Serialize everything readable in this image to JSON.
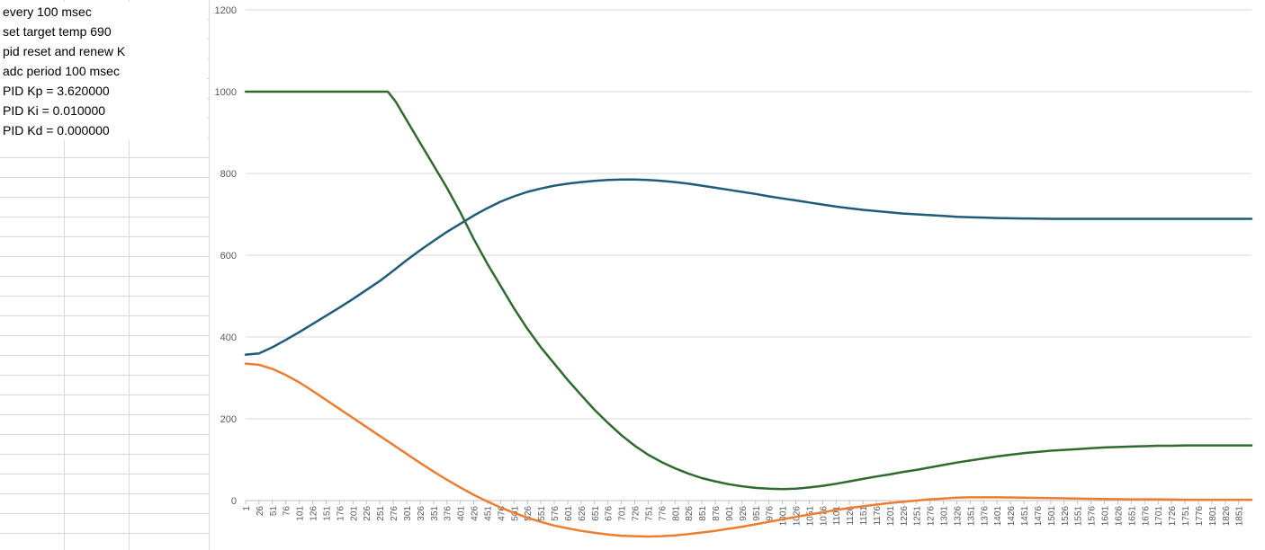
{
  "sheet": {
    "cells": [
      "every  100 msec",
      "set target temp 690",
      "pid reset and renew K",
      "adc period 100 msec",
      "PID Kp = 3.620000",
      "PID Ki = 0.010000",
      "PID Kd = 0.000000"
    ]
  },
  "chart_data": {
    "type": "line",
    "title": "",
    "xlabel": "",
    "ylabel": "",
    "ylim": [
      0,
      1200
    ],
    "yticks": [
      0,
      200,
      400,
      600,
      800,
      1000,
      1200
    ],
    "xlim": [
      1,
      1875
    ],
    "x_tick_labels": [
      "1",
      "26",
      "51",
      "76",
      "101",
      "126",
      "151",
      "176",
      "201",
      "226",
      "251",
      "276",
      "301",
      "326",
      "351",
      "376",
      "401",
      "426",
      "451",
      "476",
      "501",
      "526",
      "551",
      "576",
      "601",
      "626",
      "651",
      "676",
      "701",
      "726",
      "751",
      "776",
      "801",
      "826",
      "851",
      "876",
      "901",
      "926",
      "951",
      "976",
      "1001",
      "1026",
      "1051",
      "1076",
      "1101",
      "1126",
      "1151",
      "1176",
      "1201",
      "1226",
      "1251",
      "1276",
      "1301",
      "1326",
      "1351",
      "1376",
      "1401",
      "1426",
      "1451",
      "1476",
      "1501",
      "1526",
      "1551",
      "1576",
      "1601",
      "1626",
      "1651",
      "1676",
      "1701",
      "1726",
      "1751",
      "1776",
      "1801",
      "1826",
      "1851"
    ],
    "grid": true,
    "legend": "none",
    "series": [
      {
        "color": "#1f5c7a",
        "points": [
          [
            1,
            357
          ],
          [
            26,
            360
          ],
          [
            51,
            375
          ],
          [
            76,
            393
          ],
          [
            101,
            412
          ],
          [
            126,
            432
          ],
          [
            151,
            452
          ],
          [
            176,
            472
          ],
          [
            201,
            493
          ],
          [
            226,
            515
          ],
          [
            251,
            537
          ],
          [
            276,
            562
          ],
          [
            301,
            588
          ],
          [
            326,
            612
          ],
          [
            351,
            635
          ],
          [
            376,
            657
          ],
          [
            401,
            677
          ],
          [
            426,
            697
          ],
          [
            451,
            715
          ],
          [
            476,
            731
          ],
          [
            501,
            744
          ],
          [
            526,
            755
          ],
          [
            551,
            763
          ],
          [
            576,
            770
          ],
          [
            601,
            775
          ],
          [
            626,
            779
          ],
          [
            651,
            782
          ],
          [
            676,
            784
          ],
          [
            701,
            785
          ],
          [
            726,
            785
          ],
          [
            751,
            784
          ],
          [
            776,
            782
          ],
          [
            801,
            779
          ],
          [
            826,
            775
          ],
          [
            851,
            770
          ],
          [
            876,
            765
          ],
          [
            901,
            760
          ],
          [
            926,
            755
          ],
          [
            951,
            750
          ],
          [
            976,
            744
          ],
          [
            1001,
            739
          ],
          [
            1026,
            734
          ],
          [
            1051,
            729
          ],
          [
            1076,
            724
          ],
          [
            1101,
            719
          ],
          [
            1126,
            715
          ],
          [
            1151,
            711
          ],
          [
            1176,
            708
          ],
          [
            1201,
            705
          ],
          [
            1226,
            702
          ],
          [
            1251,
            700
          ],
          [
            1276,
            698
          ],
          [
            1301,
            696
          ],
          [
            1326,
            694
          ],
          [
            1351,
            693
          ],
          [
            1376,
            692
          ],
          [
            1401,
            691
          ],
          [
            1451,
            690
          ],
          [
            1501,
            689
          ],
          [
            1551,
            689
          ],
          [
            1601,
            689
          ],
          [
            1651,
            689
          ],
          [
            1701,
            689
          ],
          [
            1751,
            689
          ],
          [
            1801,
            689
          ],
          [
            1851,
            689
          ],
          [
            1875,
            689
          ]
        ]
      },
      {
        "color": "#ed7d31",
        "points": [
          [
            1,
            335
          ],
          [
            26,
            332
          ],
          [
            51,
            322
          ],
          [
            76,
            307
          ],
          [
            101,
            289
          ],
          [
            126,
            268
          ],
          [
            151,
            246
          ],
          [
            176,
            224
          ],
          [
            201,
            202
          ],
          [
            226,
            180
          ],
          [
            251,
            158
          ],
          [
            276,
            136
          ],
          [
            301,
            114
          ],
          [
            326,
            92
          ],
          [
            351,
            71
          ],
          [
            376,
            51
          ],
          [
            401,
            32
          ],
          [
            426,
            14
          ],
          [
            451,
            -2
          ],
          [
            476,
            -17
          ],
          [
            501,
            -30
          ],
          [
            526,
            -42
          ],
          [
            551,
            -52
          ],
          [
            576,
            -61
          ],
          [
            601,
            -68
          ],
          [
            626,
            -74
          ],
          [
            651,
            -79
          ],
          [
            676,
            -83
          ],
          [
            701,
            -86
          ],
          [
            726,
            -87
          ],
          [
            751,
            -88
          ],
          [
            776,
            -87
          ],
          [
            801,
            -85
          ],
          [
            826,
            -82
          ],
          [
            851,
            -78
          ],
          [
            876,
            -74
          ],
          [
            901,
            -69
          ],
          [
            926,
            -64
          ],
          [
            951,
            -58
          ],
          [
            976,
            -52
          ],
          [
            1001,
            -46
          ],
          [
            1026,
            -40
          ],
          [
            1051,
            -34
          ],
          [
            1076,
            -29
          ],
          [
            1101,
            -23
          ],
          [
            1126,
            -18
          ],
          [
            1151,
            -14
          ],
          [
            1176,
            -10
          ],
          [
            1201,
            -6
          ],
          [
            1226,
            -3
          ],
          [
            1251,
            0
          ],
          [
            1276,
            3
          ],
          [
            1301,
            5
          ],
          [
            1326,
            7
          ],
          [
            1351,
            8
          ],
          [
            1376,
            8
          ],
          [
            1401,
            8
          ],
          [
            1451,
            7
          ],
          [
            1501,
            6
          ],
          [
            1551,
            5
          ],
          [
            1601,
            4
          ],
          [
            1651,
            3
          ],
          [
            1701,
            3
          ],
          [
            1751,
            2
          ],
          [
            1801,
            2
          ],
          [
            1851,
            2
          ],
          [
            1875,
            2
          ]
        ]
      },
      {
        "color": "#2e6b2e",
        "points": [
          [
            1,
            1000
          ],
          [
            26,
            1000
          ],
          [
            51,
            1000
          ],
          [
            101,
            1000
          ],
          [
            151,
            1000
          ],
          [
            201,
            1000
          ],
          [
            251,
            1000
          ],
          [
            266,
            1000
          ],
          [
            281,
            975
          ],
          [
            301,
            930
          ],
          [
            326,
            875
          ],
          [
            351,
            820
          ],
          [
            376,
            765
          ],
          [
            401,
            705
          ],
          [
            426,
            640
          ],
          [
            451,
            580
          ],
          [
            476,
            525
          ],
          [
            501,
            470
          ],
          [
            526,
            420
          ],
          [
            551,
            375
          ],
          [
            576,
            335
          ],
          [
            601,
            295
          ],
          [
            626,
            258
          ],
          [
            651,
            222
          ],
          [
            676,
            190
          ],
          [
            701,
            160
          ],
          [
            726,
            134
          ],
          [
            751,
            112
          ],
          [
            776,
            94
          ],
          [
            801,
            79
          ],
          [
            826,
            66
          ],
          [
            851,
            55
          ],
          [
            876,
            47
          ],
          [
            901,
            40
          ],
          [
            926,
            35
          ],
          [
            951,
            31
          ],
          [
            976,
            29
          ],
          [
            1001,
            28
          ],
          [
            1026,
            29
          ],
          [
            1051,
            32
          ],
          [
            1076,
            36
          ],
          [
            1101,
            41
          ],
          [
            1126,
            47
          ],
          [
            1151,
            53
          ],
          [
            1176,
            59
          ],
          [
            1201,
            64
          ],
          [
            1226,
            70
          ],
          [
            1251,
            75
          ],
          [
            1276,
            81
          ],
          [
            1301,
            87
          ],
          [
            1326,
            93
          ],
          [
            1351,
            98
          ],
          [
            1376,
            103
          ],
          [
            1401,
            108
          ],
          [
            1426,
            112
          ],
          [
            1451,
            116
          ],
          [
            1476,
            119
          ],
          [
            1501,
            122
          ],
          [
            1526,
            124
          ],
          [
            1551,
            126
          ],
          [
            1576,
            128
          ],
          [
            1601,
            130
          ],
          [
            1626,
            131
          ],
          [
            1651,
            132
          ],
          [
            1676,
            133
          ],
          [
            1701,
            134
          ],
          [
            1726,
            134
          ],
          [
            1751,
            135
          ],
          [
            1776,
            135
          ],
          [
            1801,
            135
          ],
          [
            1826,
            135
          ],
          [
            1851,
            135
          ],
          [
            1875,
            135
          ]
        ]
      }
    ]
  }
}
